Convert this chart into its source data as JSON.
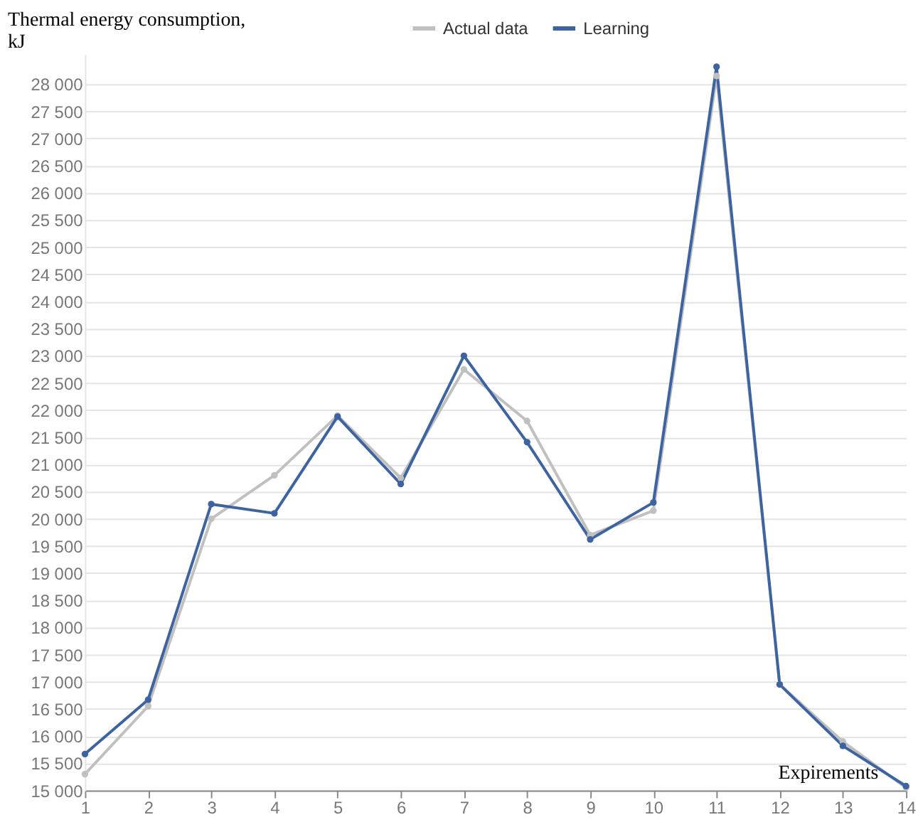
{
  "chart_data": {
    "type": "line",
    "xlabel": "Expirements",
    "ylabel": "Thermal energy consumption,\nkJ",
    "x": [
      1,
      2,
      3,
      4,
      5,
      6,
      7,
      8,
      9,
      10,
      11,
      12,
      13,
      14
    ],
    "series": [
      {
        "name": "Actual data",
        "color": "#c0c0c0",
        "values": [
          15300,
          16550,
          20000,
          20800,
          21900,
          20750,
          22750,
          21800,
          19700,
          20150,
          28150,
          16950,
          15900,
          15050
        ]
      },
      {
        "name": "Learning",
        "color": "#3d64a0",
        "values": [
          15670,
          16670,
          20270,
          20100,
          21880,
          20640,
          23000,
          21410,
          19620,
          20300,
          28320,
          16950,
          15820,
          15080
        ]
      }
    ],
    "xlim": [
      1,
      14
    ],
    "xticks": [
      1,
      2,
      3,
      4,
      5,
      6,
      7,
      8,
      9,
      10,
      11,
      12,
      13,
      14
    ],
    "ylim": [
      15000,
      28550
    ],
    "yticks": [
      {
        "value": 15000,
        "label": "15 000"
      },
      {
        "value": 15500,
        "label": "15 500"
      },
      {
        "value": 16000,
        "label": "16 000"
      },
      {
        "value": 16500,
        "label": "16 500"
      },
      {
        "value": 17000,
        "label": "17 000"
      },
      {
        "value": 17500,
        "label": "17 500"
      },
      {
        "value": 18000,
        "label": "18 000"
      },
      {
        "value": 18500,
        "label": "18 500"
      },
      {
        "value": 19000,
        "label": "19 000"
      },
      {
        "value": 19500,
        "label": "19 500"
      },
      {
        "value": 20000,
        "label": "20 000"
      },
      {
        "value": 20500,
        "label": "20 500"
      },
      {
        "value": 21000,
        "label": "21 000"
      },
      {
        "value": 21500,
        "label": "21 500"
      },
      {
        "value": 22000,
        "label": "22 000"
      },
      {
        "value": 22500,
        "label": "22 500"
      },
      {
        "value": 23000,
        "label": "23 000"
      },
      {
        "value": 23500,
        "label": "23 500"
      },
      {
        "value": 24000,
        "label": "24 000"
      },
      {
        "value": 24500,
        "label": "24 500"
      },
      {
        "value": 25000,
        "label": "25 000"
      },
      {
        "value": 25500,
        "label": "25 500"
      },
      {
        "value": 26000,
        "label": "26 000"
      },
      {
        "value": 26500,
        "label": "26 500"
      },
      {
        "value": 27000,
        "label": "27 000"
      },
      {
        "value": 27500,
        "label": "27 500"
      },
      {
        "value": 28000,
        "label": "28 000"
      }
    ],
    "grid": "y",
    "legend": "top",
    "marker": "circle",
    "line_style": "solid"
  }
}
